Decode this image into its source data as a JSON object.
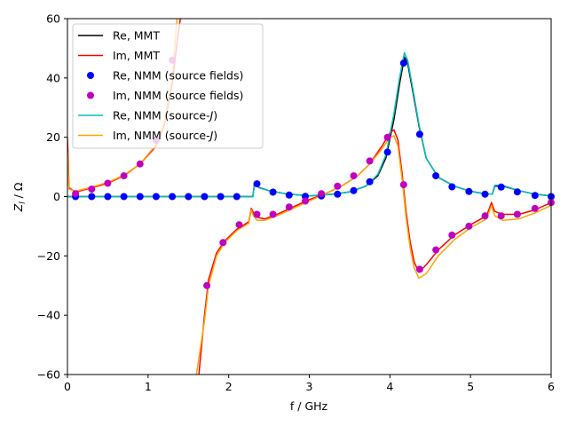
{
  "chart_data": {
    "type": "line",
    "xlabel": "f / GHz",
    "ylabel_main": "Z",
    "ylabel_sub": "l",
    "ylabel_unit": " / Ω",
    "xlim": [
      0,
      6
    ],
    "ylim": [
      -60,
      60
    ],
    "xticks": [
      0,
      1,
      2,
      3,
      4,
      5,
      6
    ],
    "yticks": [
      -60,
      -40,
      -20,
      0,
      20,
      40,
      60
    ],
    "grid": false,
    "legend_position": "top-left",
    "colors": {
      "re_mmt": "#000000",
      "im_mmt": "#ff0000",
      "re_nmm_sf": "#0000ff",
      "im_nmm_sf": "#bf00bf",
      "re_nmm_j": "#00bfbf",
      "im_nmm_j": "#ffa500"
    },
    "legend": [
      {
        "key": "re_mmt",
        "label": "Re, MMT",
        "kind": "line"
      },
      {
        "key": "im_mmt",
        "label": "Im, MMT",
        "kind": "line"
      },
      {
        "key": "re_nmm_sf",
        "label": "Re, NMM (source fields)",
        "kind": "marker"
      },
      {
        "key": "im_nmm_sf",
        "label": "Im, NMM (source fields)",
        "kind": "marker"
      },
      {
        "key": "re_nmm_j",
        "label_pre": "Re, NMM (source-",
        "label_italic": "J",
        "label_post": ")",
        "kind": "line"
      },
      {
        "key": "im_nmm_j",
        "label_pre": "Im, NMM (source-",
        "label_italic": "J",
        "label_post": ")",
        "kind": "line"
      }
    ],
    "series": [
      {
        "key": "re_mmt",
        "segments": [
          [
            [
              0,
              0
            ],
            [
              1,
              0
            ],
            [
              2,
              0
            ],
            [
              2.3,
              0
            ],
            [
              2.32,
              4.2
            ],
            [
              2.38,
              3.0
            ],
            [
              2.5,
              2.0
            ],
            [
              2.7,
              1.0
            ],
            [
              3.0,
              0.2
            ],
            [
              3.3,
              0.8
            ],
            [
              3.5,
              1.6
            ],
            [
              3.7,
              3.5
            ],
            [
              3.85,
              7
            ],
            [
              3.95,
              13
            ],
            [
              4.05,
              26
            ],
            [
              4.12,
              38
            ],
            [
              4.18,
              47
            ],
            [
              4.22,
              45
            ],
            [
              4.28,
              36
            ],
            [
              4.36,
              24
            ],
            [
              4.45,
              13
            ],
            [
              4.6,
              6.5
            ],
            [
              4.8,
              3.5
            ],
            [
              5.0,
              1.8
            ],
            [
              5.2,
              0.8
            ],
            [
              5.27,
              0.8
            ],
            [
              5.3,
              3.5
            ],
            [
              5.4,
              3.6
            ],
            [
              5.6,
              2.0
            ],
            [
              5.8,
              0.8
            ],
            [
              6.0,
              0.2
            ]
          ]
        ]
      },
      {
        "key": "im_mmt",
        "segments": [
          [
            [
              0,
              20
            ],
            [
              0.02,
              3
            ],
            [
              0.1,
              1.5
            ],
            [
              0.3,
              3
            ],
            [
              0.5,
              4.5
            ],
            [
              0.7,
              7
            ],
            [
              0.9,
              11
            ],
            [
              1.1,
              17
            ],
            [
              1.2,
              24
            ],
            [
              1.3,
              38
            ],
            [
              1.36,
              52
            ],
            [
              1.4,
              60
            ]
          ],
          [
            [
              1.63,
              -60
            ],
            [
              1.7,
              -40
            ],
            [
              1.75,
              -28
            ],
            [
              1.85,
              -19
            ],
            [
              1.95,
              -15
            ],
            [
              2.1,
              -11
            ],
            [
              2.25,
              -8.5
            ],
            [
              2.28,
              -4
            ],
            [
              2.31,
              -5.5
            ],
            [
              2.35,
              -7
            ],
            [
              2.45,
              -7.5
            ],
            [
              2.6,
              -6
            ],
            [
              2.8,
              -3.5
            ],
            [
              3.0,
              -1
            ],
            [
              3.2,
              1
            ],
            [
              3.4,
              3.5
            ],
            [
              3.6,
              7
            ],
            [
              3.75,
              11
            ],
            [
              3.9,
              17
            ],
            [
              4.0,
              21.5
            ],
            [
              4.05,
              22.5
            ],
            [
              4.1,
              19
            ],
            [
              4.15,
              8
            ],
            [
              4.2,
              -5
            ],
            [
              4.25,
              -15
            ],
            [
              4.3,
              -22
            ],
            [
              4.36,
              -25.5
            ],
            [
              4.45,
              -23
            ],
            [
              4.6,
              -18
            ],
            [
              4.8,
              -13
            ],
            [
              5.0,
              -9.5
            ],
            [
              5.2,
              -6.5
            ],
            [
              5.26,
              -2
            ],
            [
              5.3,
              -5
            ],
            [
              5.4,
              -6
            ],
            [
              5.6,
              -6
            ],
            [
              5.8,
              -4.5
            ],
            [
              6.0,
              -2
            ]
          ]
        ]
      },
      {
        "key": "re_nmm_j",
        "segments": [
          [
            [
              0,
              0
            ],
            [
              1,
              0
            ],
            [
              2,
              0
            ],
            [
              2.3,
              0
            ],
            [
              2.32,
              4.0
            ],
            [
              2.38,
              2.9
            ],
            [
              2.5,
              2.0
            ],
            [
              2.7,
              1.0
            ],
            [
              3.0,
              0.2
            ],
            [
              3.3,
              0.8
            ],
            [
              3.5,
              1.6
            ],
            [
              3.7,
              3.4
            ],
            [
              3.85,
              7.5
            ],
            [
              3.95,
              14
            ],
            [
              4.05,
              28
            ],
            [
              4.12,
              40
            ],
            [
              4.18,
              48.5
            ],
            [
              4.22,
              46
            ],
            [
              4.28,
              37
            ],
            [
              4.36,
              24.5
            ],
            [
              4.45,
              13
            ],
            [
              4.6,
              6.5
            ],
            [
              4.8,
              3.5
            ],
            [
              5.0,
              1.8
            ],
            [
              5.2,
              0.8
            ],
            [
              5.27,
              0.8
            ],
            [
              5.3,
              3.8
            ],
            [
              5.4,
              3.8
            ],
            [
              5.6,
              2.0
            ],
            [
              5.8,
              0.8
            ],
            [
              6.0,
              0.2
            ]
          ]
        ]
      },
      {
        "key": "im_nmm_j",
        "segments": [
          [
            [
              0,
              15
            ],
            [
              0.02,
              2.5
            ],
            [
              0.1,
              1.8
            ],
            [
              0.3,
              3.2
            ],
            [
              0.5,
              4.8
            ],
            [
              0.7,
              7.2
            ],
            [
              0.9,
              11
            ],
            [
              1.1,
              17.5
            ],
            [
              1.2,
              25
            ],
            [
              1.3,
              40
            ],
            [
              1.34,
              54
            ],
            [
              1.36,
              60
            ]
          ],
          [
            [
              1.6,
              -60
            ],
            [
              1.7,
              -42
            ],
            [
              1.75,
              -30
            ],
            [
              1.85,
              -20
            ],
            [
              1.95,
              -15.5
            ],
            [
              2.1,
              -11.5
            ],
            [
              2.25,
              -9
            ],
            [
              2.28,
              -4.5
            ],
            [
              2.31,
              -6.5
            ],
            [
              2.35,
              -8
            ],
            [
              2.45,
              -8
            ],
            [
              2.6,
              -6.5
            ],
            [
              2.8,
              -4
            ],
            [
              3.0,
              -1.5
            ],
            [
              3.2,
              1
            ],
            [
              3.4,
              3.5
            ],
            [
              3.6,
              7
            ],
            [
              3.75,
              11
            ],
            [
              3.9,
              16
            ],
            [
              4.0,
              20
            ],
            [
              4.05,
              20.5
            ],
            [
              4.1,
              17
            ],
            [
              4.15,
              6
            ],
            [
              4.2,
              -7
            ],
            [
              4.25,
              -17
            ],
            [
              4.3,
              -24
            ],
            [
              4.36,
              -27.5
            ],
            [
              4.45,
              -26
            ],
            [
              4.6,
              -20
            ],
            [
              4.8,
              -14.5
            ],
            [
              5.0,
              -10.5
            ],
            [
              5.2,
              -7.5
            ],
            [
              5.26,
              -3
            ],
            [
              5.3,
              -6.5
            ],
            [
              5.4,
              -8
            ],
            [
              5.6,
              -7.5
            ],
            [
              5.8,
              -5.5
            ],
            [
              6.0,
              -3
            ]
          ]
        ]
      },
      {
        "key": "re_nmm_sf",
        "points": [
          [
            0.1,
            0
          ],
          [
            0.3,
            0
          ],
          [
            0.5,
            0
          ],
          [
            0.7,
            0
          ],
          [
            0.9,
            0
          ],
          [
            1.1,
            0
          ],
          [
            1.3,
            0
          ],
          [
            1.5,
            0
          ],
          [
            1.7,
            0
          ],
          [
            1.9,
            0
          ],
          [
            2.1,
            0
          ],
          [
            2.35,
            4.3
          ],
          [
            2.55,
            1.5
          ],
          [
            2.75,
            0.5
          ],
          [
            2.95,
            0.1
          ],
          [
            3.15,
            0.2
          ],
          [
            3.35,
            0.8
          ],
          [
            3.55,
            2
          ],
          [
            3.75,
            5
          ],
          [
            3.97,
            15
          ],
          [
            4.17,
            45
          ],
          [
            4.37,
            21
          ],
          [
            4.57,
            7
          ],
          [
            4.77,
            3.3
          ],
          [
            4.98,
            1.7
          ],
          [
            5.18,
            0.8
          ],
          [
            5.38,
            3.2
          ],
          [
            5.58,
            1.6
          ],
          [
            5.8,
            0.4
          ],
          [
            6.0,
            0
          ]
        ]
      },
      {
        "key": "im_nmm_sf",
        "points": [
          [
            0.1,
            1
          ],
          [
            0.3,
            2.5
          ],
          [
            0.5,
            4.5
          ],
          [
            0.7,
            7
          ],
          [
            0.9,
            11
          ],
          [
            1.1,
            19
          ],
          [
            1.3,
            46
          ],
          [
            1.73,
            -30
          ],
          [
            1.93,
            -15.5
          ],
          [
            2.13,
            -9.5
          ],
          [
            2.35,
            -6
          ],
          [
            2.55,
            -6
          ],
          [
            2.75,
            -3.5
          ],
          [
            2.95,
            -1.5
          ],
          [
            3.15,
            1
          ],
          [
            3.35,
            3.5
          ],
          [
            3.55,
            7
          ],
          [
            3.75,
            12
          ],
          [
            3.97,
            20
          ],
          [
            4.17,
            4
          ],
          [
            4.37,
            -24.5
          ],
          [
            4.57,
            -18
          ],
          [
            4.77,
            -13
          ],
          [
            4.98,
            -10
          ],
          [
            5.18,
            -6.5
          ],
          [
            5.38,
            -6.5
          ],
          [
            5.58,
            -6
          ],
          [
            5.8,
            -4
          ],
          [
            6.0,
            -2
          ]
        ]
      }
    ]
  }
}
